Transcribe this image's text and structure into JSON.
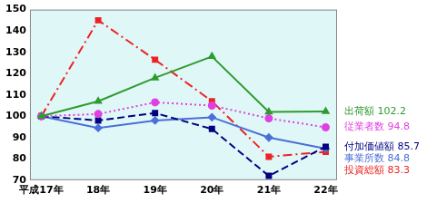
{
  "chart_data": {
    "type": "line",
    "categories": [
      "平成17年",
      "18年",
      "19年",
      "20年",
      "21年",
      "22年"
    ],
    "series": [
      {
        "name": "出荷額",
        "color": "#2e9b2e",
        "line_style": "solid",
        "marker": "triangle",
        "values": [
          100,
          107,
          118,
          128,
          102,
          102.2
        ]
      },
      {
        "name": "従業者数",
        "color": "#e040e0",
        "line_style": "dotted",
        "marker": "circle",
        "values": [
          100,
          101,
          106.5,
          105,
          99,
          94.8
        ]
      },
      {
        "name": "付加価値額",
        "color": "#000080",
        "line_style": "dashed",
        "marker": "square",
        "values": [
          100,
          98,
          101.5,
          94,
          72,
          85.7
        ]
      },
      {
        "name": "事業所数",
        "color": "#4a6fd8",
        "line_style": "solid",
        "marker": "diamond",
        "values": [
          100,
          94.5,
          98,
          99.5,
          90,
          84.8
        ]
      },
      {
        "name": "投資総額",
        "color": "#ee2222",
        "line_style": "dashdot",
        "marker": "square",
        "values": [
          100,
          145,
          126.5,
          107,
          81,
          83.3
        ]
      }
    ],
    "annotations": [
      {
        "text": "出荷額 102.2",
        "series": "出荷額"
      },
      {
        "text": "従業者数 94.8",
        "series": "従業者数"
      },
      {
        "text": "付加価値額 85.7",
        "series": "付加価値額"
      },
      {
        "text": "事業所数 84.8",
        "series": "事業所数"
      },
      {
        "text": "投資総額 83.3",
        "series": "投資総額"
      }
    ],
    "ylim": [
      70,
      150
    ],
    "yticks": [
      70,
      80,
      90,
      100,
      110,
      120,
      130,
      140,
      150
    ],
    "grid": false
  }
}
